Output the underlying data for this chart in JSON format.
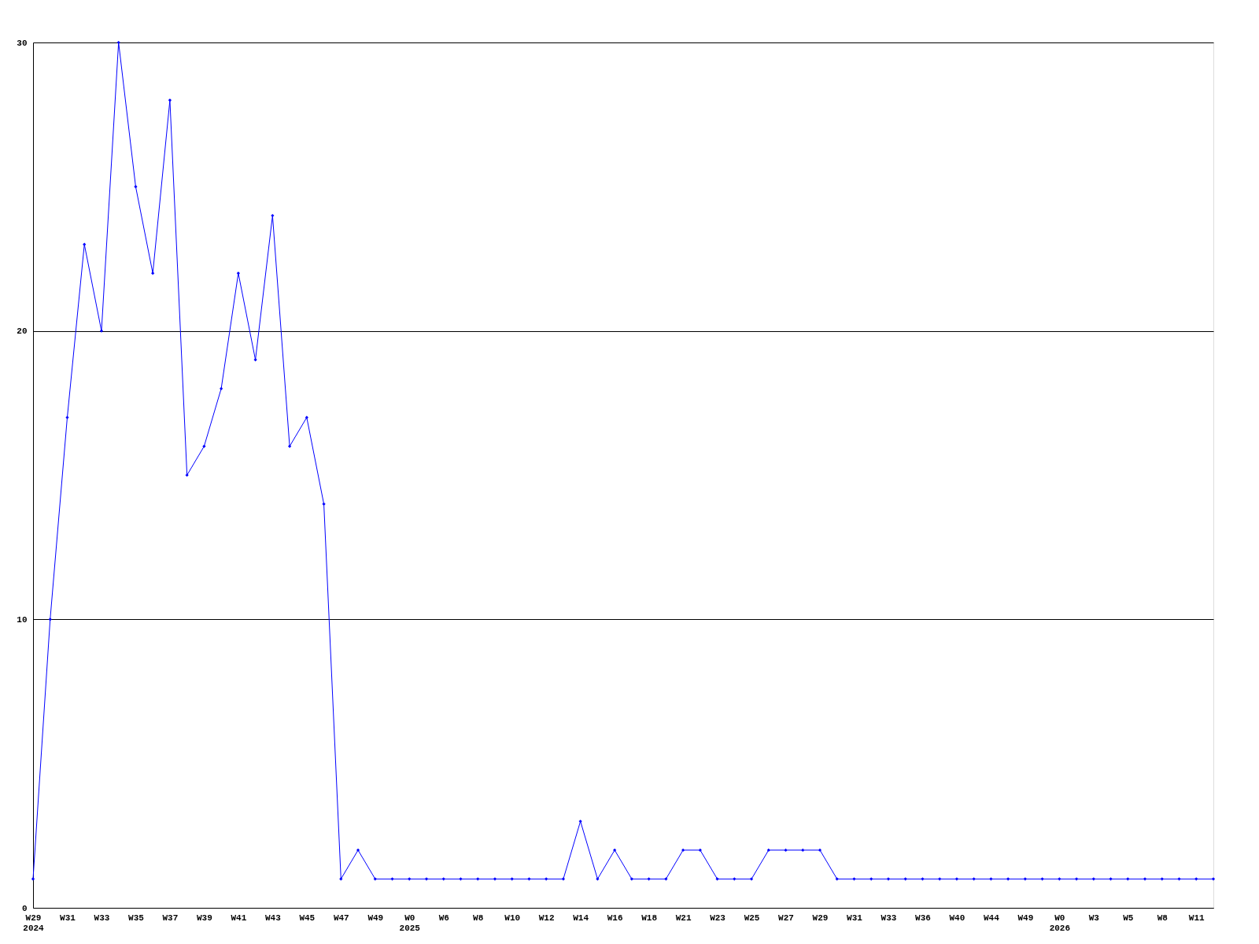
{
  "chart_data": {
    "type": "line",
    "categories": [
      "W29\n2024",
      null,
      "W31",
      null,
      "W33",
      null,
      "W35",
      null,
      "W37",
      null,
      "W39",
      null,
      "W41",
      null,
      "W43",
      null,
      "W45",
      null,
      "W47",
      null,
      "W49",
      null,
      "W0\n2025",
      null,
      "W6",
      null,
      "W8",
      null,
      "W10",
      null,
      "W12",
      null,
      "W14",
      null,
      "W16",
      null,
      "W18",
      null,
      "W21",
      null,
      "W23",
      null,
      "W25",
      null,
      "W27",
      null,
      "W29",
      null,
      "W31",
      null,
      "W33",
      null,
      "W36",
      null,
      "W40",
      null,
      "W44",
      null,
      "W49",
      null,
      "W0\n2026",
      null,
      "W3",
      null,
      "W5",
      null,
      "W8",
      null,
      "W11",
      null
    ],
    "series": [
      {
        "color": "#0000ff",
        "values": [
          1,
          10,
          17,
          23,
          20,
          30,
          25,
          22,
          28,
          15,
          16,
          18,
          22,
          19,
          24,
          16,
          17,
          14,
          1,
          2,
          1,
          1,
          1,
          1,
          1,
          1,
          1,
          1,
          1,
          1,
          1,
          1,
          3,
          1,
          2,
          1,
          1,
          1,
          2,
          2,
          1,
          1,
          1,
          2,
          2,
          2,
          2,
          1,
          1,
          1,
          1,
          1,
          1,
          1,
          1,
          1,
          1,
          1,
          1,
          1,
          1,
          1,
          1,
          1,
          1,
          1,
          1,
          1,
          1,
          1
        ]
      }
    ],
    "ylim": [
      0,
      30
    ],
    "yticks": [
      0,
      10,
      20,
      30
    ],
    "grid": "y",
    "marker": "diamond",
    "line_style": "solid",
    "legend": false
  }
}
